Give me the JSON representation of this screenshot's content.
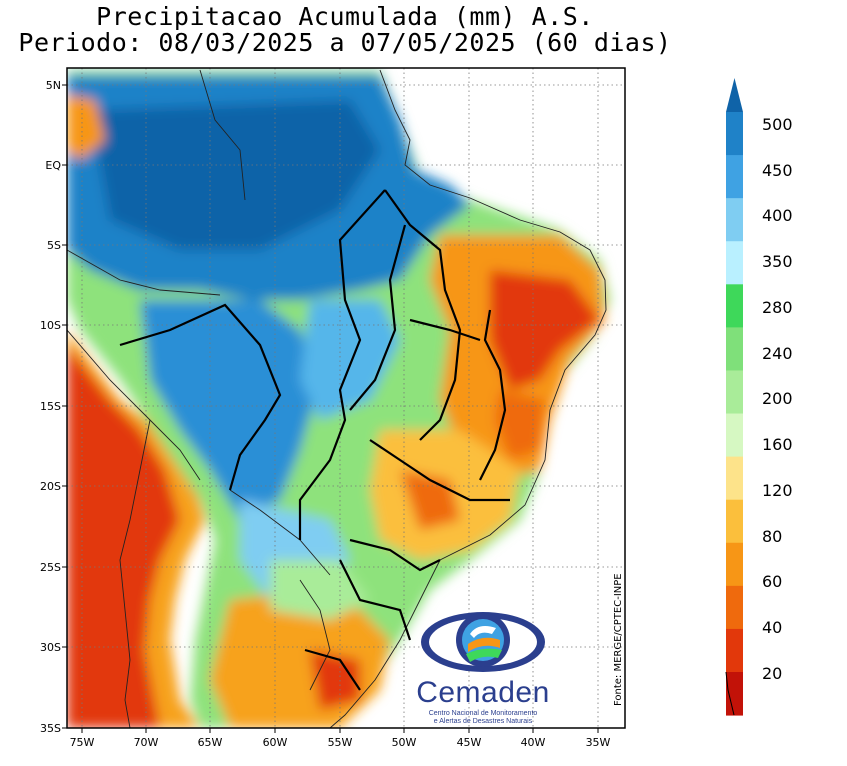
{
  "title_line1": "Precipitacao Acumulada (mm) A.S.",
  "title_line2": "Periodo: 08/03/2025 a 07/05/2025 (60 dias)",
  "latitude_labels": [
    "5N",
    "EQ",
    "5S",
    "10S",
    "15S",
    "20S",
    "25S",
    "30S",
    "35S"
  ],
  "longitude_labels": [
    "75W",
    "70W",
    "65W",
    "60W",
    "55W",
    "50W",
    "45W",
    "40W",
    "35W"
  ],
  "colorbar": {
    "labels": [
      "500",
      "450",
      "400",
      "350",
      "280",
      "240",
      "200",
      "160",
      "120",
      "80",
      "60",
      "40",
      "20"
    ],
    "colors": [
      "#0f63a8",
      "#1f82c8",
      "#3fa2e3",
      "#7fcdf2",
      "#b9f0ff",
      "#3ed85a",
      "#7fe07a",
      "#a9ec99",
      "#d6f8c2",
      "#fde38a",
      "#fbbf3c",
      "#f79616",
      "#ef6a0d",
      "#e2380b",
      "#c21208"
    ]
  },
  "credit": "Fonte: MERGE/CPTEC-INPE",
  "logo": {
    "name": "Cemaden",
    "subtitle_line1": "Centro Nacional de Monitoramento",
    "subtitle_line2": "e Alertas de Desastres Naturais"
  }
}
